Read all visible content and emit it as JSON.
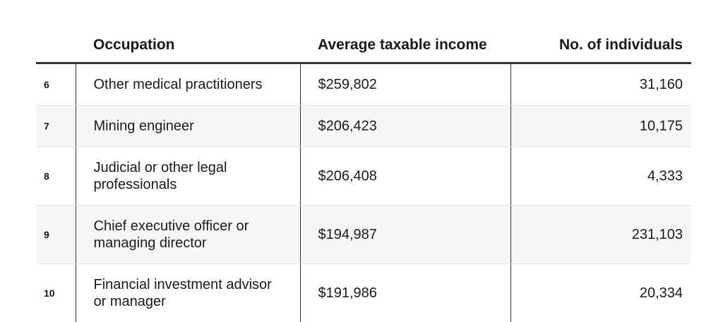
{
  "table": {
    "headers": {
      "rank": "",
      "occupation": "Occupation",
      "income": "Average taxable income",
      "individuals": "No. of individuals"
    },
    "rows": [
      {
        "rank": "6",
        "occupation": "Other medical practitioners",
        "income": "$259,802",
        "individuals": "31,160"
      },
      {
        "rank": "7",
        "occupation": "Mining engineer",
        "income": "$206,423",
        "individuals": "10,175"
      },
      {
        "rank": "8",
        "occupation": "Judicial or other legal professionals",
        "income": "$206,408",
        "individuals": "4,333"
      },
      {
        "rank": "9",
        "occupation": "Chief executive officer or managing director",
        "income": "$194,987",
        "individuals": "231,103"
      },
      {
        "rank": "10",
        "occupation": "Financial investment advisor or manager",
        "income": "$191,986",
        "individuals": "20,334"
      }
    ]
  }
}
